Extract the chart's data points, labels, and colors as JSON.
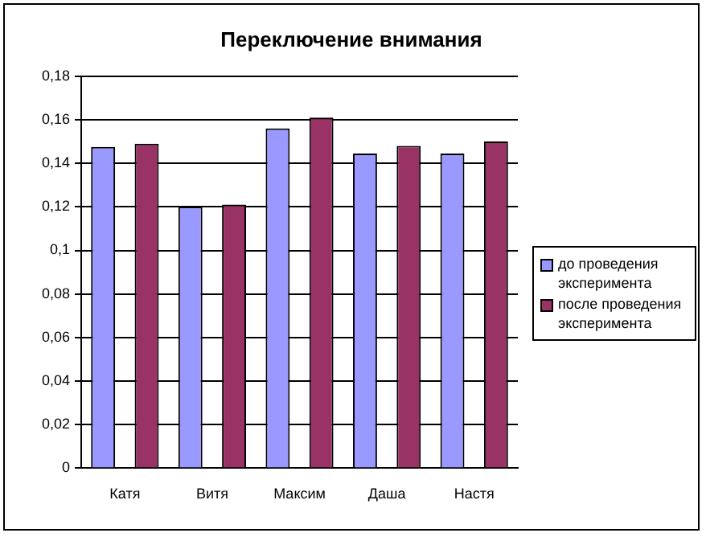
{
  "chart_data": {
    "type": "bar",
    "title": "Переключение внимания",
    "categories": [
      "Катя",
      "Витя",
      "Максим",
      "Даша",
      "Настя"
    ],
    "series": [
      {
        "name": "до проведения эксперимента",
        "color": "#9999ff",
        "values": [
          0.1475,
          0.12,
          0.156,
          0.1445,
          0.1445
        ]
      },
      {
        "name": "после проведения эксперимента",
        "color": "#993366",
        "values": [
          0.149,
          0.121,
          0.161,
          0.148,
          0.15
        ]
      }
    ],
    "ylim": [
      0,
      0.18
    ],
    "yticks": [
      {
        "value": 0,
        "label": "0"
      },
      {
        "value": 0.02,
        "label": "0,02"
      },
      {
        "value": 0.04,
        "label": "0,04"
      },
      {
        "value": 0.06,
        "label": "0,06"
      },
      {
        "value": 0.08,
        "label": "0,08"
      },
      {
        "value": 0.1,
        "label": "0,1"
      },
      {
        "value": 0.12,
        "label": "0,12"
      },
      {
        "value": 0.14,
        "label": "0,14"
      },
      {
        "value": 0.16,
        "label": "0,16"
      },
      {
        "value": 0.18,
        "label": "0,18"
      }
    ],
    "grid": "y",
    "legend": "right"
  }
}
